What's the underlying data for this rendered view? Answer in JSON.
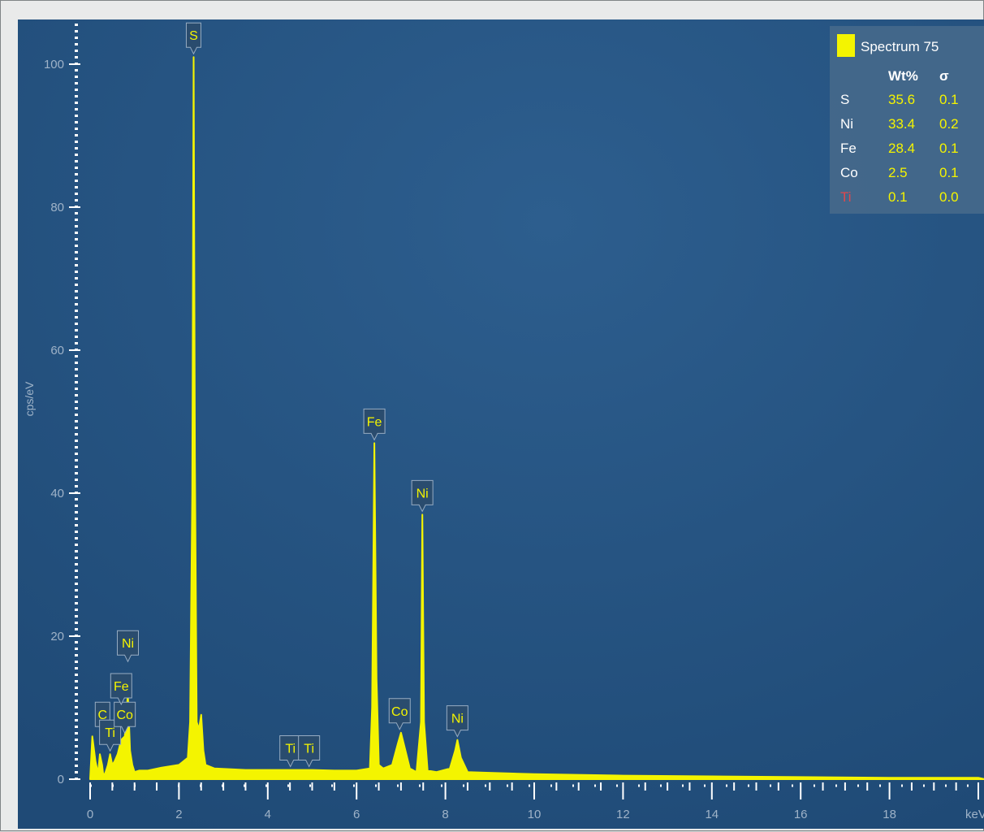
{
  "chart_data": {
    "type": "line",
    "title": "",
    "xlabel": "keV",
    "ylabel": "cps/eV",
    "xlim": [
      0,
      20
    ],
    "ylim": [
      0,
      103
    ],
    "x_ticks": [
      0,
      2,
      4,
      6,
      8,
      10,
      12,
      14,
      16,
      18
    ],
    "y_ticks": [
      0,
      20,
      40,
      60,
      80,
      100
    ],
    "grid": false,
    "legend_position": "top-right",
    "series": [
      {
        "name": "Spectrum 75",
        "color": "#f4f400",
        "x": [
          0.0,
          0.05,
          0.12,
          0.18,
          0.22,
          0.27,
          0.3,
          0.35,
          0.4,
          0.45,
          0.5,
          0.55,
          0.62,
          0.7,
          0.78,
          0.85,
          0.9,
          0.95,
          1.0,
          1.1,
          1.3,
          1.6,
          2.0,
          2.2,
          2.25,
          2.3,
          2.33,
          2.36,
          2.4,
          2.45,
          2.5,
          2.55,
          2.6,
          2.8,
          3.5,
          4.0,
          4.5,
          4.8,
          5.0,
          5.5,
          6.0,
          6.3,
          6.35,
          6.4,
          6.45,
          6.5,
          6.6,
          6.8,
          6.93,
          7.0,
          7.08,
          7.2,
          7.35,
          7.45,
          7.48,
          7.52,
          7.6,
          7.8,
          8.1,
          8.22,
          8.27,
          8.35,
          8.5,
          9.0,
          10.0,
          12.0,
          14.0,
          16.0,
          18.0,
          20.0
        ],
        "y": [
          0.0,
          6.0,
          2.5,
          0.8,
          3.5,
          2.0,
          0.4,
          1.0,
          2.0,
          3.5,
          2.0,
          2.5,
          3.5,
          5.5,
          6.0,
          12.0,
          4.0,
          2.0,
          1.0,
          1.2,
          1.2,
          1.6,
          2.0,
          3.0,
          8.0,
          40.0,
          101.0,
          45.0,
          8.0,
          7.0,
          9.0,
          4.0,
          2.0,
          1.5,
          1.3,
          1.3,
          1.3,
          1.3,
          1.3,
          1.2,
          1.2,
          1.5,
          10.0,
          47.0,
          14.0,
          2.0,
          1.5,
          2.0,
          5.0,
          6.5,
          4.5,
          1.5,
          1.0,
          8.0,
          37.0,
          8.0,
          1.2,
          1.0,
          1.5,
          4.0,
          5.5,
          3.0,
          1.0,
          0.9,
          0.7,
          0.5,
          0.4,
          0.3,
          0.2,
          0.2
        ]
      }
    ],
    "peak_labels": [
      {
        "text": "S",
        "x": 2.33,
        "y": 101.0
      },
      {
        "text": "Fe",
        "x": 6.4,
        "y": 47.0
      },
      {
        "text": "Ni",
        "x": 7.48,
        "y": 37.0
      },
      {
        "text": "Co",
        "x": 6.97,
        "y": 6.5
      },
      {
        "text": "Ni",
        "x": 8.27,
        "y": 5.5
      },
      {
        "text": "Ti",
        "x": 4.51,
        "y": 1.3
      },
      {
        "text": "Ti",
        "x": 4.93,
        "y": 1.3
      },
      {
        "text": "C",
        "x": 0.28,
        "y": 6.0
      },
      {
        "text": "Ti",
        "x": 0.45,
        "y": 3.5
      },
      {
        "text": "Co",
        "x": 0.78,
        "y": 6.0
      },
      {
        "text": "Fe",
        "x": 0.7,
        "y": 10.0
      },
      {
        "text": "Ni",
        "x": 0.85,
        "y": 16.0
      }
    ]
  },
  "legend": {
    "spectrum_name": "Spectrum 75",
    "col_wt": "Wt%",
    "col_sigma": "σ",
    "rows": [
      {
        "element": "S",
        "wt": "35.6",
        "sigma": "0.1",
        "color": "#ffffff"
      },
      {
        "element": "Ni",
        "wt": "33.4",
        "sigma": "0.2",
        "color": "#ffffff"
      },
      {
        "element": "Fe",
        "wt": "28.4",
        "sigma": "0.1",
        "color": "#ffffff"
      },
      {
        "element": "Co",
        "wt": "2.5",
        "sigma": "0.1",
        "color": "#ffffff"
      },
      {
        "element": "Ti",
        "wt": "0.1",
        "sigma": "0.0",
        "color": "#e0474c"
      }
    ]
  }
}
